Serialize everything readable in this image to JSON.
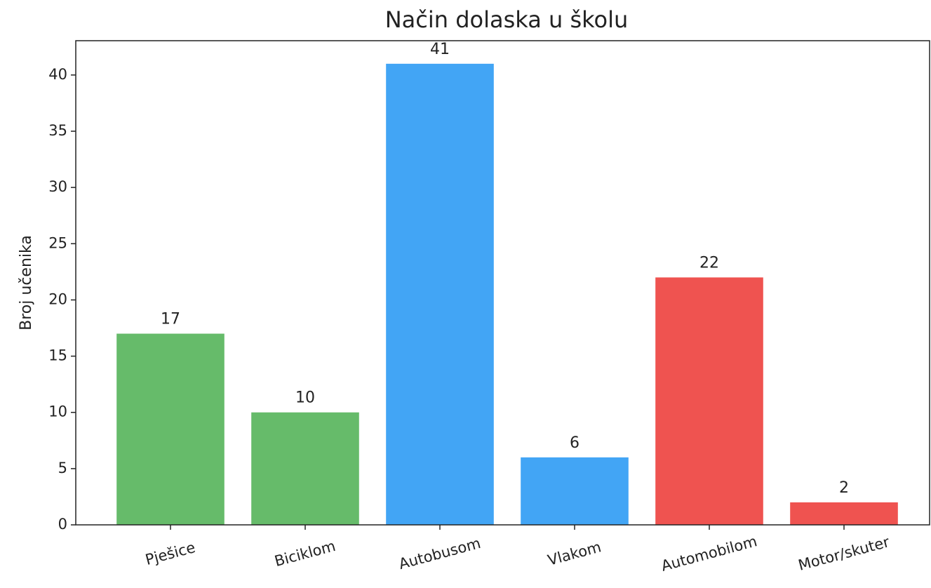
{
  "chart_data": {
    "type": "bar",
    "title": "Način dolaska u školu",
    "y_label": "Broj učenika",
    "categories": [
      "Pješice",
      "Biciklom",
      "Autobusom",
      "Vlakom",
      "Automobilom",
      "Motor/skuter"
    ],
    "values": [
      17,
      10,
      41,
      6,
      22,
      2
    ],
    "colors": [
      "#66bb6a",
      "#66bb6a",
      "#42a5f5",
      "#42a5f5",
      "#ef5350",
      "#ef5350"
    ],
    "ylim": [
      0,
      43.05
    ],
    "yticks": [
      0,
      5,
      10,
      15,
      20,
      25,
      30,
      35,
      40
    ],
    "grid": false
  }
}
